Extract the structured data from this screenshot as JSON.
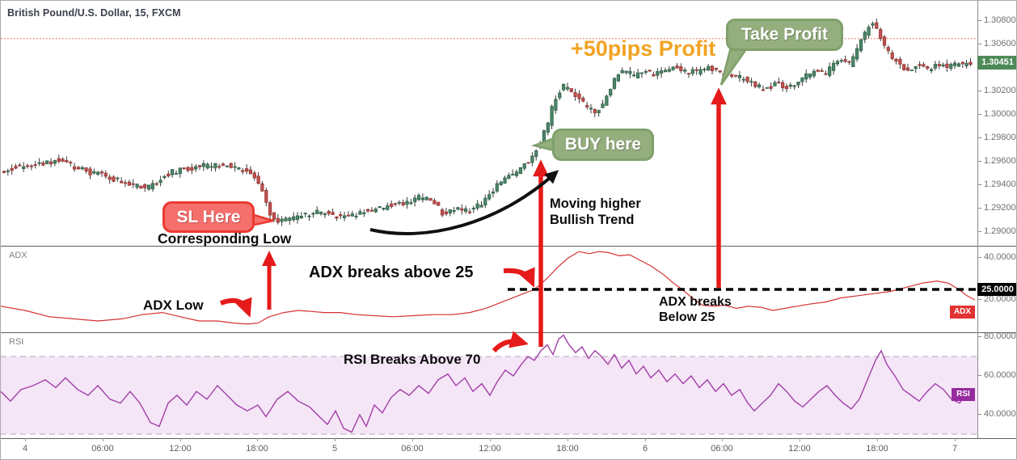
{
  "header": {
    "title": "British Pound/U.S. Dollar, 15, FXCM"
  },
  "panels": {
    "adx": {
      "label": "ADX",
      "tag": "ADX"
    },
    "rsi": {
      "label": "RSI",
      "tag": "RSI"
    }
  },
  "price_axis": {
    "labels": [
      "1.30800",
      "1.30600",
      "1.30400",
      "1.30200",
      "1.30000",
      "1.29800",
      "1.29600",
      "1.29400",
      "1.29200",
      "1.29000"
    ],
    "values": [
      1.308,
      1.306,
      1.304,
      1.302,
      1.3,
      1.298,
      1.296,
      1.294,
      1.292,
      1.29
    ],
    "current_price": "1.30451"
  },
  "adx_axis": {
    "labels": [
      "40.0000",
      "20.0000"
    ],
    "values": [
      40,
      20
    ],
    "threshold_label": "25.0000",
    "threshold_value": 25
  },
  "rsi_axis": {
    "labels": [
      "80.0000",
      "60.0000",
      "40.0000"
    ],
    "values": [
      80,
      60,
      40
    ]
  },
  "time_axis": {
    "labels": [
      "4",
      "06:00",
      "12:00",
      "18:00",
      "5",
      "06:00",
      "12:00",
      "18:00",
      "6",
      "06:00",
      "12:00",
      "18:00",
      "7"
    ]
  },
  "annotations": {
    "sl_bubble": "SL Here",
    "corresponding_low": "Corresponding Low",
    "buy_bubble": "BUY here",
    "trend_note_line1": "Moving higher",
    "trend_note_line2": "Bullish Trend",
    "profit_note": "+50pips Profit",
    "tp_bubble": "Take Profit",
    "adx_low": "ADX Low",
    "adx_above": "ADX breaks above 25",
    "adx_below_line1": "ADX breaks",
    "adx_below_line2": "Below 25",
    "rsi_above": "RSI Breaks Above 70"
  },
  "colors": {
    "up": "#4c8769",
    "up_border": "#2c5f45",
    "down": "#c0504f",
    "down_border": "#963634",
    "wick": "#3a3a3a",
    "adx_line": "#d63031",
    "rsi_line": "#a13ea8",
    "rsi_band": "#f5e6f7",
    "band_border": "#b5a5bf",
    "dotted_line": "#e4502e",
    "threshold_dash": "#000000",
    "arrow_red": "#e51a1a",
    "arrow_black": "#111111",
    "bubble_red": "#f56f6d",
    "bubble_red_border": "#e93a31",
    "bubble_green": "#94ae7e",
    "bubble_green_border": "#7fa06a",
    "profit_orange": "#f2a322",
    "price_tag_bg": "#4e8a58",
    "adx_tag_bg": "#e23232",
    "rsi_tag_bg": "#952b9e"
  },
  "chart_data": [
    {
      "type": "candlestick",
      "title": "British Pound/U.S. Dollar",
      "timeframe": "15",
      "exchange": "FXCM",
      "last_price": 1.30451,
      "dotted_level": 1.3065,
      "ylim": [
        1.289,
        1.3089
      ],
      "x_categories": [
        "4",
        "06:00",
        "12:00",
        "18:00",
        "5",
        "06:00",
        "12:00",
        "18:00",
        "6",
        "06:00",
        "12:00",
        "18:00",
        "7"
      ],
      "grid": false,
      "price_path": [
        [
          0,
          1.2951
        ],
        [
          15,
          1.2954
        ],
        [
          30,
          1.2956
        ],
        [
          50,
          1.2958
        ],
        [
          75,
          1.2961
        ],
        [
          95,
          1.2956
        ],
        [
          110,
          1.2952
        ],
        [
          130,
          1.2948
        ],
        [
          150,
          1.2944
        ],
        [
          170,
          1.294
        ],
        [
          185,
          1.2937
        ],
        [
          200,
          1.2944
        ],
        [
          215,
          1.2951
        ],
        [
          235,
          1.2954
        ],
        [
          250,
          1.2956
        ],
        [
          270,
          1.2957
        ],
        [
          285,
          1.2958
        ],
        [
          300,
          1.2954
        ],
        [
          312,
          1.2951
        ],
        [
          322,
          1.2945
        ],
        [
          330,
          1.2932
        ],
        [
          340,
          1.2912
        ],
        [
          348,
          1.2908
        ],
        [
          360,
          1.2912
        ],
        [
          375,
          1.2914
        ],
        [
          390,
          1.2916
        ],
        [
          405,
          1.2917
        ],
        [
          420,
          1.2914
        ],
        [
          432,
          1.2912
        ],
        [
          448,
          1.2916
        ],
        [
          462,
          1.2919
        ],
        [
          478,
          1.2921
        ],
        [
          492,
          1.2923
        ],
        [
          508,
          1.2926
        ],
        [
          522,
          1.2929
        ],
        [
          535,
          1.293
        ],
        [
          545,
          1.2922
        ],
        [
          553,
          1.2913
        ],
        [
          562,
          1.2918
        ],
        [
          570,
          1.2921
        ],
        [
          580,
          1.2918
        ],
        [
          590,
          1.292
        ],
        [
          600,
          1.2925
        ],
        [
          610,
          1.2933
        ],
        [
          622,
          1.2942
        ],
        [
          635,
          1.2948
        ],
        [
          648,
          1.2954
        ],
        [
          660,
          1.2963
        ],
        [
          670,
          1.2974
        ],
        [
          680,
          1.2989
        ],
        [
          690,
          1.3014
        ],
        [
          700,
          1.3024
        ],
        [
          710,
          1.3021
        ],
        [
          722,
          1.3012
        ],
        [
          733,
          1.3005
        ],
        [
          742,
          1.3001
        ],
        [
          752,
          1.3013
        ],
        [
          763,
          1.303
        ],
        [
          775,
          1.3038
        ],
        [
          788,
          1.3033
        ],
        [
          800,
          1.3038
        ],
        [
          812,
          1.3035
        ],
        [
          825,
          1.3038
        ],
        [
          838,
          1.304
        ],
        [
          852,
          1.3037
        ],
        [
          866,
          1.3036
        ],
        [
          880,
          1.304
        ],
        [
          893,
          1.3037
        ],
        [
          906,
          1.3034
        ],
        [
          920,
          1.3032
        ],
        [
          935,
          1.3026
        ],
        [
          950,
          1.3021
        ],
        [
          965,
          1.3027
        ],
        [
          980,
          1.3023
        ],
        [
          995,
          1.3031
        ],
        [
          1010,
          1.3037
        ],
        [
          1025,
          1.3035
        ],
        [
          1040,
          1.3048
        ],
        [
          1055,
          1.3043
        ],
        [
          1068,
          1.3062
        ],
        [
          1080,
          1.3078
        ],
        [
          1088,
          1.3075
        ],
        [
          1098,
          1.3058
        ],
        [
          1110,
          1.3047
        ],
        [
          1123,
          1.3038
        ],
        [
          1138,
          1.3042
        ],
        [
          1152,
          1.3039
        ],
        [
          1165,
          1.3043
        ],
        [
          1178,
          1.3041
        ],
        [
          1192,
          1.3043
        ],
        [
          1205,
          1.3044
        ]
      ]
    },
    {
      "type": "line",
      "indicator": "ADX",
      "threshold": 25,
      "ylim": [
        4.6,
        45.8
      ],
      "grid": false,
      "points": [
        [
          0,
          17
        ],
        [
          30,
          15
        ],
        [
          60,
          12
        ],
        [
          90,
          11
        ],
        [
          120,
          10
        ],
        [
          150,
          11
        ],
        [
          175,
          13
        ],
        [
          200,
          14
        ],
        [
          222,
          12
        ],
        [
          245,
          10
        ],
        [
          268,
          10
        ],
        [
          288,
          9
        ],
        [
          305,
          8.5
        ],
        [
          318,
          9
        ],
        [
          332,
          12
        ],
        [
          350,
          14
        ],
        [
          368,
          15
        ],
        [
          385,
          14.5
        ],
        [
          400,
          14
        ],
        [
          420,
          14
        ],
        [
          440,
          13
        ],
        [
          462,
          12.5
        ],
        [
          485,
          12
        ],
        [
          510,
          12.5
        ],
        [
          535,
          13
        ],
        [
          558,
          13
        ],
        [
          580,
          14
        ],
        [
          600,
          16
        ],
        [
          620,
          19
        ],
        [
          640,
          22
        ],
        [
          660,
          25
        ],
        [
          675,
          30
        ],
        [
          690,
          36
        ],
        [
          702,
          40
        ],
        [
          715,
          43
        ],
        [
          728,
          42
        ],
        [
          740,
          43
        ],
        [
          752,
          42.5
        ],
        [
          765,
          41
        ],
        [
          778,
          41.5
        ],
        [
          790,
          39
        ],
        [
          805,
          36
        ],
        [
          820,
          32
        ],
        [
          832,
          28
        ],
        [
          843,
          25
        ],
        [
          855,
          21
        ],
        [
          868,
          17.5
        ],
        [
          882,
          17
        ],
        [
          895,
          17.5
        ],
        [
          910,
          16
        ],
        [
          925,
          17
        ],
        [
          940,
          16.5
        ],
        [
          955,
          15
        ],
        [
          970,
          16
        ],
        [
          985,
          17
        ],
        [
          1000,
          18
        ],
        [
          1020,
          19
        ],
        [
          1040,
          21
        ],
        [
          1060,
          22
        ],
        [
          1080,
          23
        ],
        [
          1100,
          24
        ],
        [
          1120,
          26
        ],
        [
          1140,
          28
        ],
        [
          1158,
          29
        ],
        [
          1172,
          28
        ],
        [
          1185,
          25
        ],
        [
          1195,
          22
        ],
        [
          1205,
          20
        ]
      ]
    },
    {
      "type": "line",
      "indicator": "RSI",
      "band": [
        30,
        70
      ],
      "ylim": [
        28,
        81
      ],
      "grid": false,
      "points": [
        [
          0,
          52
        ],
        [
          12,
          47
        ],
        [
          25,
          53
        ],
        [
          40,
          55
        ],
        [
          55,
          58
        ],
        [
          68,
          54
        ],
        [
          80,
          59
        ],
        [
          95,
          53
        ],
        [
          108,
          50
        ],
        [
          120,
          55
        ],
        [
          135,
          48
        ],
        [
          148,
          46
        ],
        [
          160,
          52
        ],
        [
          172,
          46
        ],
        [
          185,
          36
        ],
        [
          196,
          34
        ],
        [
          207,
          46
        ],
        [
          218,
          50
        ],
        [
          230,
          45
        ],
        [
          242,
          52
        ],
        [
          255,
          48
        ],
        [
          268,
          55
        ],
        [
          280,
          50
        ],
        [
          292,
          45
        ],
        [
          305,
          42
        ],
        [
          318,
          45
        ],
        [
          328,
          39
        ],
        [
          342,
          48
        ],
        [
          355,
          52
        ],
        [
          368,
          47
        ],
        [
          382,
          44
        ],
        [
          394,
          39
        ],
        [
          404,
          35
        ],
        [
          414,
          42
        ],
        [
          424,
          33
        ],
        [
          434,
          31
        ],
        [
          444,
          40
        ],
        [
          452,
          34
        ],
        [
          462,
          45
        ],
        [
          472,
          41
        ],
        [
          483,
          49
        ],
        [
          494,
          53
        ],
        [
          505,
          50
        ],
        [
          517,
          55
        ],
        [
          529,
          51
        ],
        [
          541,
          58
        ],
        [
          553,
          61
        ],
        [
          563,
          55
        ],
        [
          574,
          59
        ],
        [
          584,
          52
        ],
        [
          595,
          56
        ],
        [
          605,
          50
        ],
        [
          614,
          57
        ],
        [
          624,
          63
        ],
        [
          634,
          60
        ],
        [
          644,
          66
        ],
        [
          652,
          70
        ],
        [
          660,
          68
        ],
        [
          668,
          73
        ],
        [
          676,
          76
        ],
        [
          683,
          71
        ],
        [
          690,
          79
        ],
        [
          696,
          81
        ],
        [
          703,
          76
        ],
        [
          711,
          72
        ],
        [
          719,
          75
        ],
        [
          727,
          69
        ],
        [
          735,
          73
        ],
        [
          743,
          70
        ],
        [
          751,
          66
        ],
        [
          759,
          71
        ],
        [
          768,
          64
        ],
        [
          777,
          68
        ],
        [
          786,
          61
        ],
        [
          795,
          65
        ],
        [
          804,
          59
        ],
        [
          814,
          63
        ],
        [
          824,
          57
        ],
        [
          834,
          61
        ],
        [
          844,
          56
        ],
        [
          854,
          60
        ],
        [
          864,
          54
        ],
        [
          874,
          58
        ],
        [
          884,
          52
        ],
        [
          894,
          56
        ],
        [
          904,
          50
        ],
        [
          914,
          53
        ],
        [
          924,
          46
        ],
        [
          932,
          42
        ],
        [
          942,
          46
        ],
        [
          952,
          50
        ],
        [
          962,
          56
        ],
        [
          972,
          52
        ],
        [
          982,
          47
        ],
        [
          992,
          44
        ],
        [
          1002,
          48
        ],
        [
          1012,
          52
        ],
        [
          1022,
          55
        ],
        [
          1032,
          50
        ],
        [
          1042,
          46
        ],
        [
          1052,
          43
        ],
        [
          1062,
          48
        ],
        [
          1072,
          58
        ],
        [
          1082,
          68
        ],
        [
          1089,
          73
        ],
        [
          1096,
          66
        ],
        [
          1106,
          60
        ],
        [
          1116,
          53
        ],
        [
          1126,
          50
        ],
        [
          1136,
          47
        ],
        [
          1146,
          52
        ],
        [
          1156,
          56
        ],
        [
          1166,
          53
        ],
        [
          1176,
          48
        ],
        [
          1186,
          46
        ],
        [
          1196,
          52
        ],
        [
          1205,
          53
        ]
      ]
    }
  ]
}
